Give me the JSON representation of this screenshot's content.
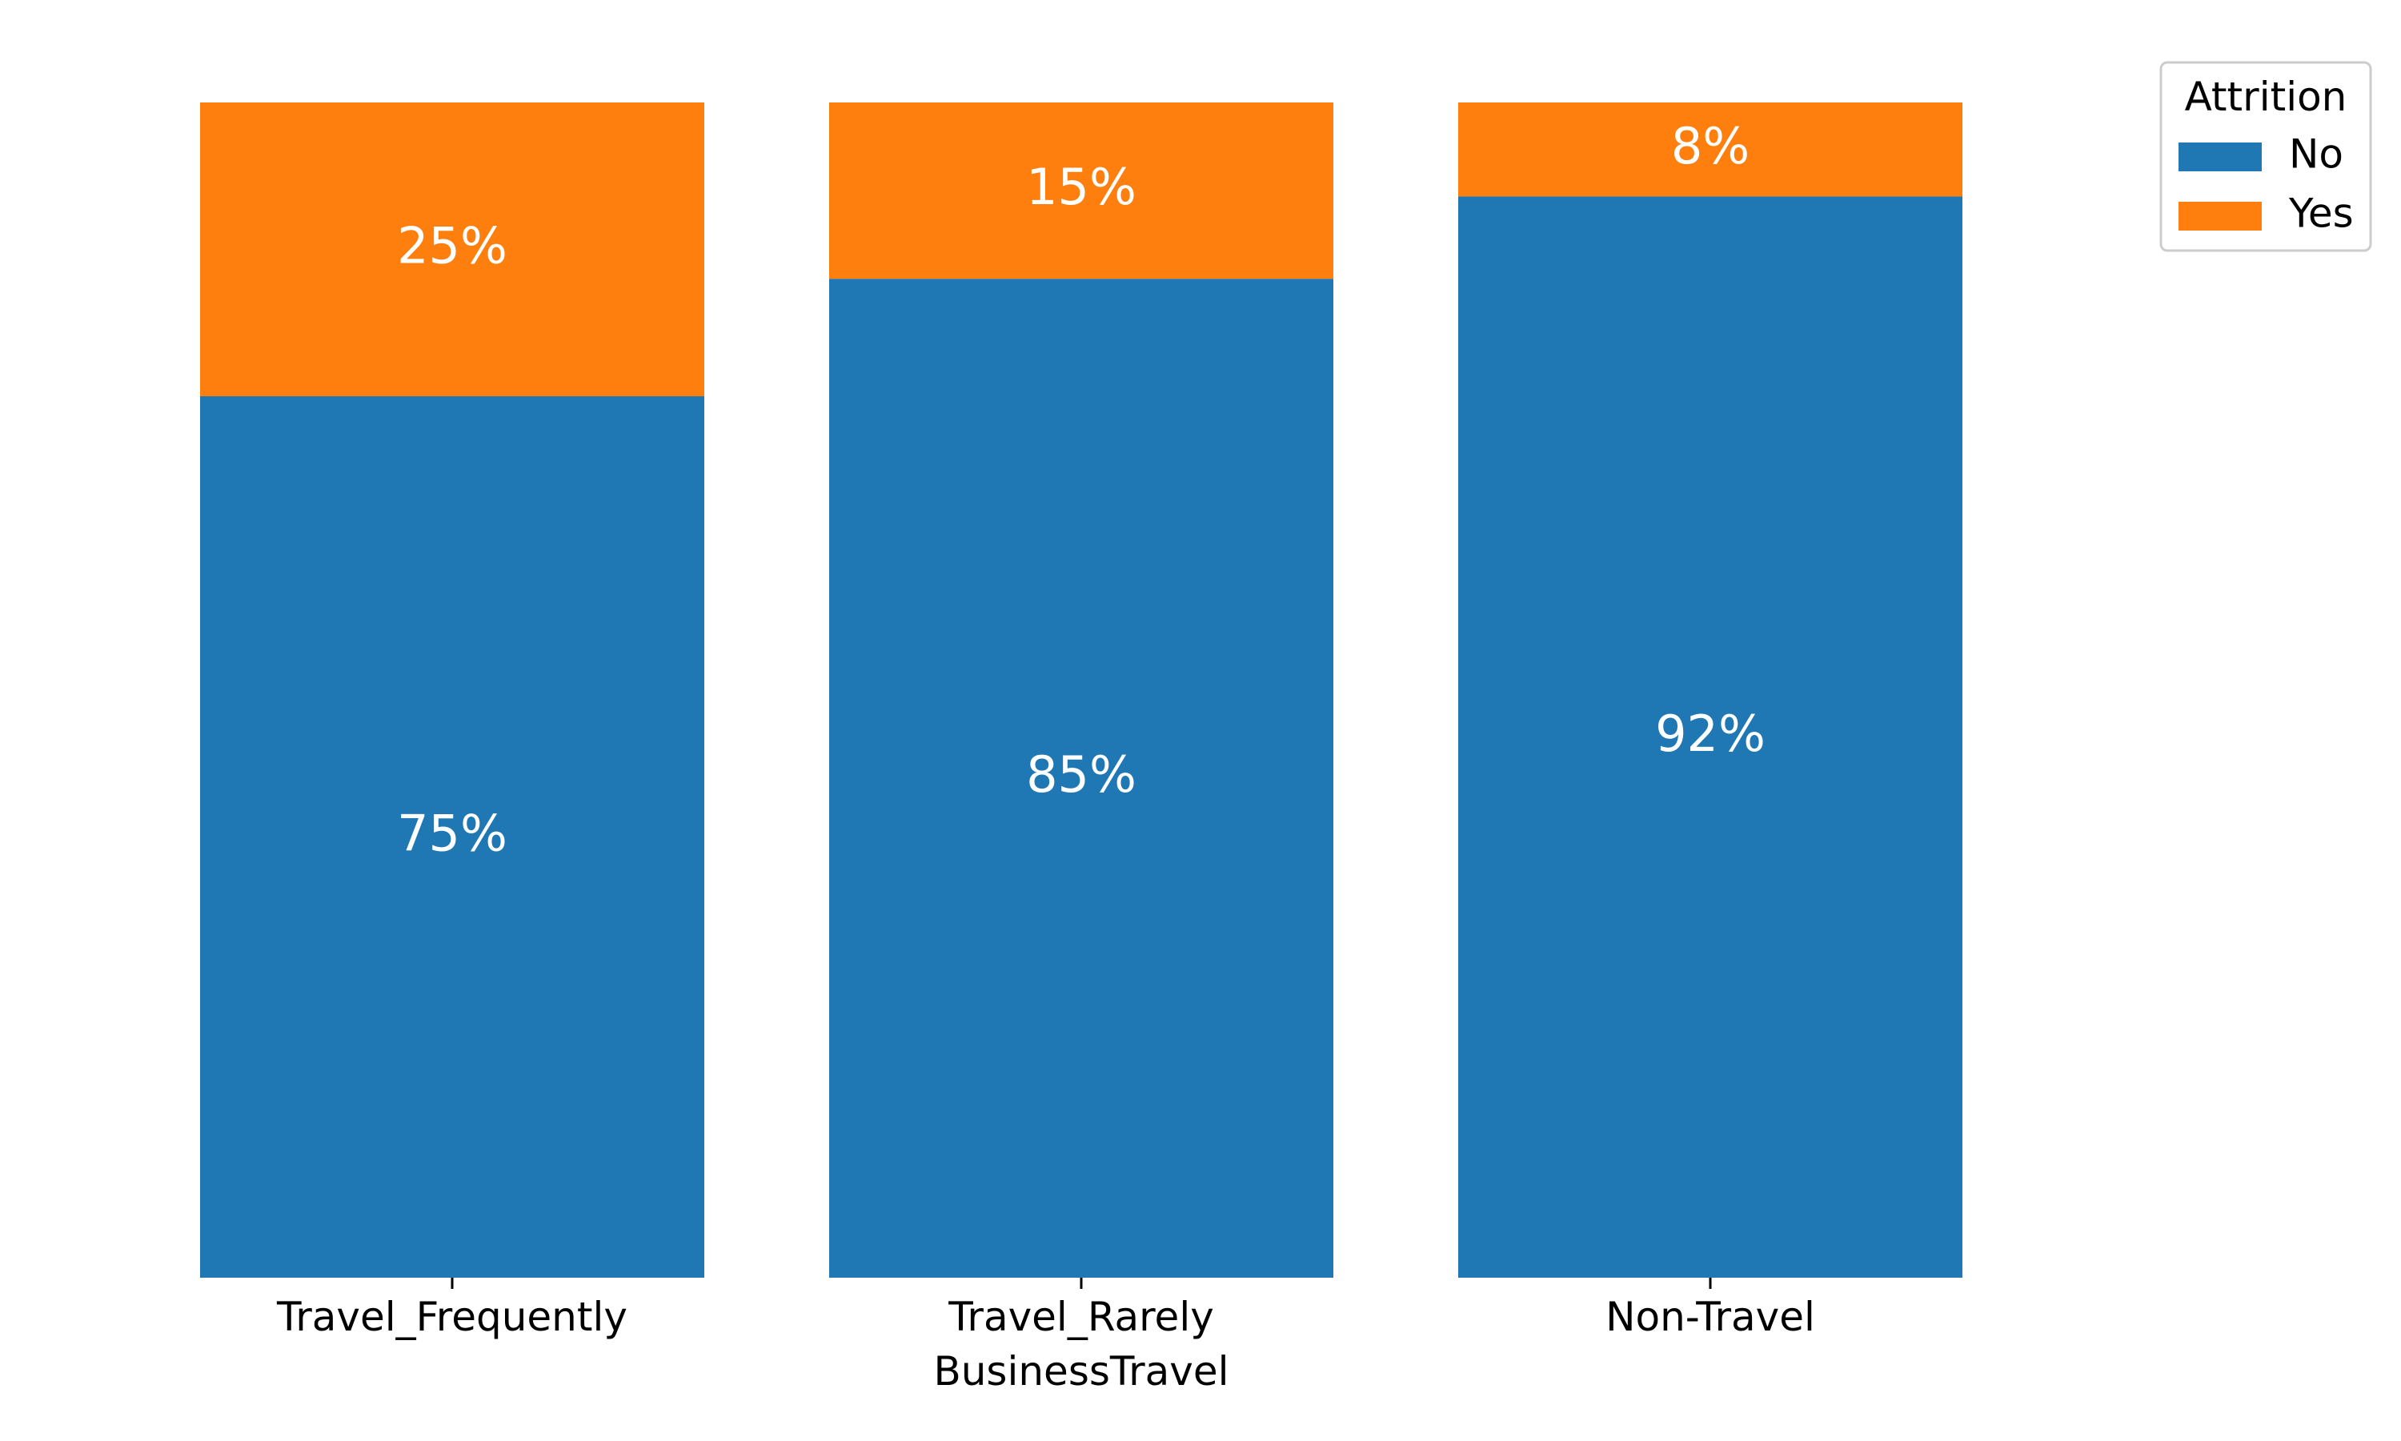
{
  "chart_data": {
    "type": "bar",
    "stacked": true,
    "normalized": true,
    "categories": [
      "Travel_Frequently",
      "Travel_Rarely",
      "Non-Travel"
    ],
    "series": [
      {
        "name": "No",
        "values": [
          75,
          85,
          92
        ],
        "labels": [
          "75%",
          "85%",
          "92%"
        ],
        "color": "#1f77b4"
      },
      {
        "name": "Yes",
        "values": [
          25,
          15,
          8
        ],
        "labels": [
          "25%",
          "15%",
          "8%"
        ],
        "color": "#ff7f0e"
      }
    ],
    "title": "",
    "xlabel": "BusinessTravel",
    "ylabel": "",
    "ylim": [
      0,
      100
    ],
    "y_axis_visible": false,
    "grid": false,
    "legend": {
      "title": "Attrition",
      "position": "top-right"
    }
  }
}
